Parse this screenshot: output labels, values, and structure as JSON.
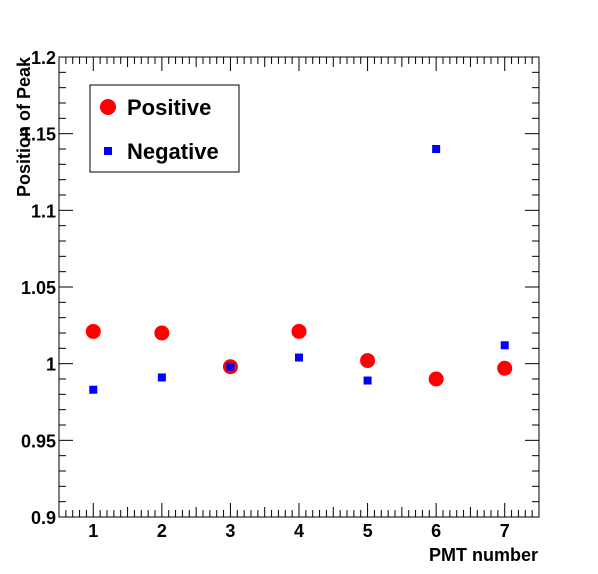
{
  "colors": {
    "positive": "#ff0000",
    "negative": "#0000ff",
    "axis": "#000000",
    "background": "#ffffff"
  },
  "chart_data": {
    "type": "scatter",
    "title": "",
    "xlabel": "PMT number",
    "ylabel": "Position of Peak",
    "xlim": [
      0.5,
      7.5
    ],
    "ylim": [
      0.9,
      1.2
    ],
    "x_ticks": [
      "1",
      "2",
      "3",
      "4",
      "5",
      "6",
      "7"
    ],
    "y_ticks": [
      "0.9",
      "0.95",
      "1",
      "1.05",
      "1.1",
      "1.15",
      "1.2"
    ],
    "y_tick_values": [
      0.9,
      0.95,
      1.0,
      1.05,
      1.1,
      1.15,
      1.2
    ],
    "grid": false,
    "legend_position": "top-left",
    "series": [
      {
        "name": "Positive",
        "marker": "circle",
        "color": "#ff0000",
        "x": [
          1,
          2,
          3,
          4,
          5,
          6,
          7
        ],
        "y": [
          1.021,
          1.02,
          0.998,
          1.021,
          1.002,
          0.99,
          0.997
        ]
      },
      {
        "name": "Negative",
        "marker": "square",
        "color": "#0000ff",
        "x": [
          1,
          2,
          3,
          4,
          5,
          6,
          7
        ],
        "y": [
          0.983,
          0.991,
          0.998,
          1.004,
          0.989,
          1.14,
          1.012
        ]
      }
    ]
  }
}
